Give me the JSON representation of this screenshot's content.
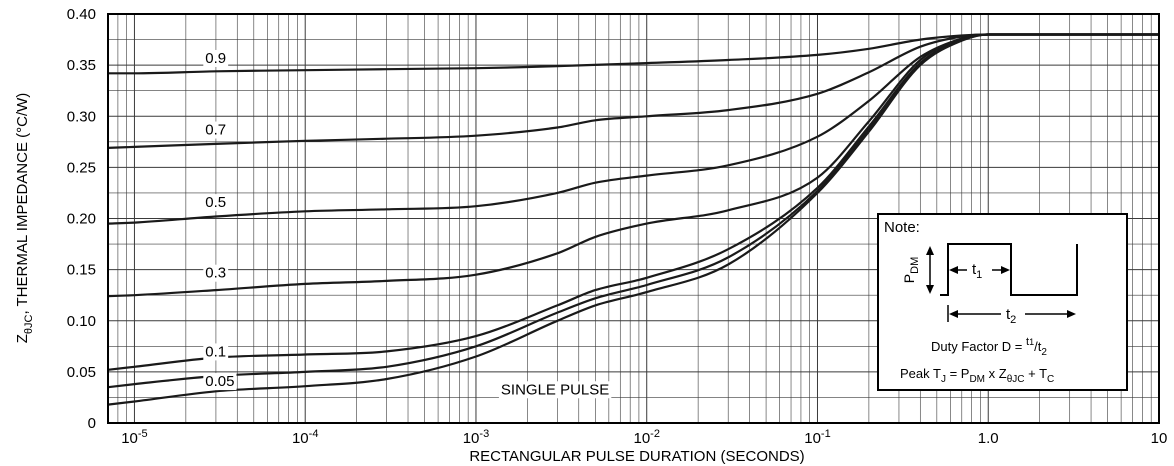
{
  "chart_data": {
    "type": "line",
    "x_scale": "log",
    "y_scale": "linear",
    "xlim": [
      7e-06,
      10
    ],
    "ylim": [
      0,
      0.4
    ],
    "grid": true,
    "xlabel": "RECTANGULAR PULSE DURATION (SECONDS)",
    "ylabel": {
      "main": "Z",
      "sub": "θJC",
      "rest": ", THERMAL IMPEDANCE (°C/W)"
    },
    "x_ticks": [
      {
        "value": 1e-05,
        "base": "10",
        "exp": "-5"
      },
      {
        "value": 0.0001,
        "base": "10",
        "exp": "-4"
      },
      {
        "value": 0.001,
        "base": "10",
        "exp": "-3"
      },
      {
        "value": 0.01,
        "base": "10",
        "exp": "-2"
      },
      {
        "value": 0.1,
        "base": "10",
        "exp": "-1"
      },
      {
        "value": 1,
        "base": "1.0",
        "exp": ""
      },
      {
        "value": 10,
        "base": "10",
        "exp": ""
      }
    ],
    "y_ticks": [
      {
        "value": 0,
        "label": "0"
      },
      {
        "value": 0.05,
        "label": "0.05"
      },
      {
        "value": 0.1,
        "label": "0.10"
      },
      {
        "value": 0.15,
        "label": "0.15"
      },
      {
        "value": 0.2,
        "label": "0.20"
      },
      {
        "value": 0.25,
        "label": "0.25"
      },
      {
        "value": 0.3,
        "label": "0.30"
      },
      {
        "value": 0.35,
        "label": "0.35"
      },
      {
        "value": 0.4,
        "label": "0.40"
      }
    ],
    "series": [
      {
        "name": "0.9",
        "label_at": [
          2.6e-05,
          0.357
        ],
        "x": [
          7e-06,
          1e-05,
          3e-05,
          0.0001,
          0.0003,
          0.001,
          0.003,
          0.01,
          0.03,
          0.1,
          0.2,
          0.4,
          0.7,
          1,
          10
        ],
        "y": [
          0.342,
          0.342,
          0.344,
          0.345,
          0.346,
          0.347,
          0.349,
          0.352,
          0.355,
          0.36,
          0.366,
          0.375,
          0.379,
          0.38,
          0.38
        ]
      },
      {
        "name": "0.7",
        "label_at": [
          2.6e-05,
          0.287
        ],
        "x": [
          7e-06,
          1e-05,
          3e-05,
          0.0001,
          0.0003,
          0.001,
          0.003,
          0.005,
          0.01,
          0.03,
          0.1,
          0.2,
          0.4,
          0.7,
          1,
          10
        ],
        "y": [
          0.269,
          0.27,
          0.273,
          0.276,
          0.278,
          0.281,
          0.289,
          0.296,
          0.3,
          0.306,
          0.322,
          0.343,
          0.368,
          0.378,
          0.38,
          0.38
        ]
      },
      {
        "name": "0.5",
        "label_at": [
          2.6e-05,
          0.216
        ],
        "x": [
          7e-06,
          1e-05,
          3e-05,
          0.0001,
          0.0003,
          0.001,
          0.003,
          0.005,
          0.01,
          0.03,
          0.1,
          0.2,
          0.4,
          0.7,
          1,
          10
        ],
        "y": [
          0.195,
          0.196,
          0.202,
          0.207,
          0.209,
          0.212,
          0.225,
          0.235,
          0.242,
          0.252,
          0.28,
          0.315,
          0.358,
          0.376,
          0.38,
          0.38
        ]
      },
      {
        "name": "0.3",
        "label_at": [
          2.6e-05,
          0.147
        ],
        "x": [
          7e-06,
          1e-05,
          3e-05,
          0.0001,
          0.0003,
          0.001,
          0.003,
          0.005,
          0.01,
          0.03,
          0.1,
          0.2,
          0.4,
          0.7,
          1,
          10
        ],
        "y": [
          0.124,
          0.125,
          0.13,
          0.136,
          0.139,
          0.145,
          0.166,
          0.182,
          0.195,
          0.208,
          0.24,
          0.295,
          0.355,
          0.376,
          0.38,
          0.38
        ]
      },
      {
        "name": "0.1",
        "label_at": [
          2.6e-05,
          0.07
        ],
        "x": [
          7e-06,
          1e-05,
          3e-05,
          0.0001,
          0.0003,
          0.001,
          0.003,
          0.005,
          0.01,
          0.03,
          0.1,
          0.2,
          0.4,
          0.7,
          1,
          10
        ],
        "y": [
          0.052,
          0.055,
          0.064,
          0.067,
          0.07,
          0.085,
          0.115,
          0.13,
          0.142,
          0.17,
          0.23,
          0.29,
          0.352,
          0.375,
          0.38,
          0.38
        ]
      },
      {
        "name": "0.05",
        "label_at": [
          2.6e-05,
          0.041
        ],
        "x": [
          7e-06,
          1e-05,
          3e-05,
          0.0001,
          0.0003,
          0.001,
          0.003,
          0.005,
          0.01,
          0.03,
          0.1,
          0.2,
          0.4,
          0.7,
          1,
          10
        ],
        "y": [
          0.035,
          0.038,
          0.046,
          0.05,
          0.055,
          0.075,
          0.108,
          0.122,
          0.135,
          0.162,
          0.227,
          0.288,
          0.351,
          0.375,
          0.38,
          0.38
        ]
      },
      {
        "name": "SINGLE PULSE",
        "label_at": [
          0.0014,
          0.033
        ],
        "x": [
          7e-06,
          1e-05,
          3e-05,
          0.0001,
          0.0003,
          0.001,
          0.003,
          0.005,
          0.01,
          0.03,
          0.1,
          0.2,
          0.4,
          0.7,
          1,
          10
        ],
        "y": [
          0.018,
          0.021,
          0.031,
          0.036,
          0.043,
          0.065,
          0.1,
          0.115,
          0.128,
          0.155,
          0.225,
          0.285,
          0.35,
          0.374,
          0.38,
          0.38
        ]
      }
    ]
  },
  "note_box": {
    "title": "Note:",
    "pdm": {
      "main": "P",
      "sub": "DM"
    },
    "t1": {
      "main": "t",
      "sub": "1"
    },
    "t2": {
      "main": "t",
      "sub": "2"
    },
    "duty_text": "Duty Factor  D = ",
    "duty_num": "1",
    "duty_den": "2",
    "peak_prefix": "Peak T",
    "peak_j": "J",
    "peak_mid": " = P",
    "peak_dm": "DM",
    "peak_x": " x Z",
    "peak_theta": "θJC",
    "peak_tail": " + T",
    "peak_c": "C"
  },
  "colors": {
    "line": "#1a1a1a",
    "grid": "#3a3a3a",
    "background": "#ffffff"
  }
}
